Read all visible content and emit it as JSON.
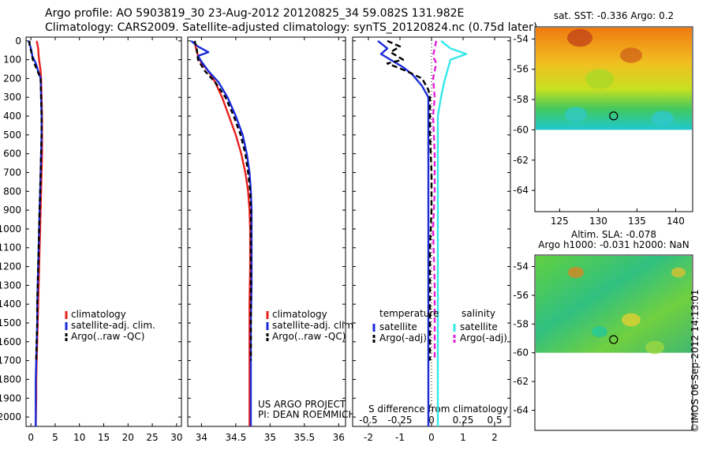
{
  "titles": {
    "line1": "Argo profile: AO 5903819_30 23-Aug-2012 20120825_34 59.082S 131.982E",
    "line2": "Climatology: CARS2009. Satellite-adjusted climatology: synTS_20120824.nc (0.75d later)"
  },
  "colors": {
    "climatology": "#e8201c",
    "satellite": "#1a2bd9",
    "argo": "#000000",
    "salinity_sat": "#33e8e8",
    "salinity_argo": "#e020d8"
  },
  "chart_data": [
    {
      "type": "line",
      "panel": "temperature",
      "y_ticks": [
        "0",
        "100",
        "200",
        "300",
        "400",
        "500",
        "600",
        "700",
        "800",
        "900",
        "1000",
        "1100",
        "1200",
        "1300",
        "1400",
        "1500",
        "1600",
        "1700",
        "1800",
        "1900",
        "2000"
      ],
      "x_ticks": [
        "0",
        "5",
        "10",
        "15",
        "20",
        "25",
        "30"
      ],
      "xlim": [
        -1,
        31
      ],
      "ylim": [
        2050,
        -20
      ],
      "legend": [
        "climatology",
        "satellite-adj. clim.",
        "Argo(..raw -QC)"
      ],
      "series": [
        {
          "name": "climatology",
          "x": [
            1.2,
            1.5,
            1.6,
            1.8,
            2.0,
            2.1,
            2.2,
            2.3,
            2.3,
            2.3,
            2.2,
            2.1,
            2.0,
            1.9,
            1.8,
            1.7,
            1.6,
            1.5,
            1.4,
            1.3,
            1.2,
            1.1,
            1.1,
            1.0
          ],
          "y": [
            0,
            40,
            80,
            120,
            160,
            200,
            300,
            400,
            500,
            600,
            700,
            800,
            900,
            1000,
            1100,
            1200,
            1300,
            1400,
            1500,
            1600,
            1700,
            1800,
            1900,
            2050
          ]
        },
        {
          "name": "satellite-adj. clim.",
          "x": [
            -0.5,
            0.0,
            0.3,
            1.0,
            1.5,
            2.0,
            2.1,
            2.2,
            2.2,
            2.1,
            2.0,
            1.9,
            1.8,
            1.7,
            1.6,
            1.5,
            1.4,
            1.3,
            1.3,
            1.2,
            1.1,
            1.0,
            1.0
          ],
          "y": [
            0,
            40,
            80,
            120,
            160,
            200,
            300,
            400,
            500,
            600,
            700,
            800,
            900,
            1000,
            1100,
            1200,
            1300,
            1400,
            1500,
            1600,
            1700,
            1800,
            2050
          ]
        },
        {
          "name": "Argo(..raw -QC)",
          "x": [
            -0.3,
            -0.2,
            0.1,
            0.4,
            1.2,
            2.0,
            2.1,
            2.2,
            2.2,
            2.1,
            2.0,
            1.9,
            1.8,
            1.7,
            1.6,
            1.5,
            1.4,
            1.3,
            1.3,
            1.2,
            1.1
          ],
          "y": [
            0,
            30,
            60,
            100,
            150,
            200,
            300,
            400,
            500,
            600,
            700,
            800,
            900,
            1000,
            1100,
            1200,
            1300,
            1400,
            1500,
            1600,
            1700
          ]
        }
      ]
    },
    {
      "type": "line",
      "panel": "salinity",
      "x_ticks": [
        "34",
        "34.5",
        "35",
        "35.5",
        "36"
      ],
      "xlim": [
        33.8,
        36.1
      ],
      "ylim": [
        2050,
        -20
      ],
      "legend": [
        "climatology",
        "satellite-adj. clim.",
        "Argo(..raw -QC)"
      ],
      "annotations": [
        "US ARGO PROJECT",
        "PI: DEAN ROEMMICH"
      ],
      "series": [
        {
          "name": "climatology",
          "x": [
            33.9,
            33.92,
            33.95,
            34.0,
            34.1,
            34.2,
            34.3,
            34.4,
            34.5,
            34.58,
            34.64,
            34.68,
            34.7,
            34.71,
            34.71,
            34.71,
            34.7,
            34.7,
            34.7,
            34.7,
            34.7
          ],
          "y": [
            0,
            40,
            80,
            120,
            160,
            220,
            300,
            400,
            500,
            600,
            700,
            800,
            900,
            1000,
            1100,
            1200,
            1400,
            1600,
            1800,
            1900,
            2050
          ]
        },
        {
          "name": "satellite-adj. clim.",
          "x": [
            33.85,
            33.95,
            34.1,
            33.95,
            34.0,
            34.1,
            34.25,
            34.38,
            34.5,
            34.6,
            34.66,
            34.7,
            34.72,
            34.73,
            34.73,
            34.73,
            34.73,
            34.72,
            34.72,
            34.72
          ],
          "y": [
            0,
            30,
            60,
            80,
            110,
            160,
            220,
            300,
            400,
            500,
            600,
            700,
            800,
            900,
            1000,
            1100,
            1300,
            1500,
            1800,
            2050
          ]
        },
        {
          "name": "Argo(..raw -QC)",
          "x": [
            33.9,
            33.93,
            33.95,
            34.05,
            34.2,
            34.35,
            34.47,
            34.57,
            34.64,
            34.68,
            34.71,
            34.72,
            34.72,
            34.72,
            34.72
          ],
          "y": [
            0,
            40,
            100,
            160,
            220,
            300,
            400,
            500,
            600,
            700,
            800,
            900,
            1000,
            1300,
            1700
          ]
        }
      ]
    },
    {
      "type": "line",
      "panel": "difference",
      "x_ticks": [
        "-2",
        "-1",
        "0",
        "1",
        "2"
      ],
      "x_ticks_top": [
        "-0.5",
        "-0.25",
        "0",
        "0.25",
        "0.5"
      ],
      "xlabel": "S difference from climatology",
      "xlim": [
        -2.5,
        2.5
      ],
      "ylim": [
        2050,
        -20
      ],
      "legend_temperature_title": "temperature",
      "legend_salinity_title": "salinity",
      "legend_temperature": [
        "satellite",
        "Argo(-adj)"
      ],
      "legend_salinity": [
        "satellite",
        "Argo(-adj)"
      ],
      "series": [
        {
          "name": "temperature satellite",
          "x": [
            -1.7,
            -1.4,
            -1.6,
            -1.3,
            -0.9,
            -0.6,
            -0.3,
            -0.1,
            -0.1,
            -0.1,
            -0.1,
            -0.1,
            -0.1,
            -0.1,
            -0.1,
            -0.1,
            -0.1
          ],
          "y": [
            0,
            40,
            70,
            100,
            140,
            180,
            240,
            300,
            400,
            600,
            800,
            1000,
            1200,
            1400,
            1600,
            1800,
            2050
          ]
        },
        {
          "name": "temperature Argo(-adj)",
          "x": [
            -1.4,
            -1.0,
            -1.3,
            -0.9,
            -1.4,
            -0.8,
            -0.3,
            -0.1,
            -0.05,
            -0.05,
            0.0,
            0.0,
            -0.05,
            -0.05,
            -0.05
          ],
          "y": [
            0,
            30,
            60,
            100,
            120,
            160,
            200,
            260,
            300,
            500,
            700,
            900,
            1100,
            1400,
            1700
          ]
        },
        {
          "name": "salinity satellite",
          "x": [
            0.3,
            0.6,
            1.1,
            0.6,
            0.5,
            0.4,
            0.3,
            0.2,
            0.2,
            0.2,
            0.2,
            0.2,
            0.2,
            0.2
          ],
          "y": [
            0,
            40,
            70,
            100,
            160,
            220,
            300,
            400,
            600,
            800,
            1000,
            1300,
            1700,
            2050
          ]
        },
        {
          "name": "salinity Argo(-adj)",
          "x": [
            0.15,
            0.1,
            0.05,
            0.15,
            0.1,
            0.05,
            0.1,
            0.05,
            0.1,
            0.1,
            0.05,
            0.1,
            0.1
          ],
          "y": [
            0,
            40,
            80,
            120,
            160,
            200,
            300,
            400,
            600,
            800,
            1000,
            1300,
            1700
          ]
        }
      ]
    },
    {
      "type": "heatmap",
      "panel": "sst_map",
      "title": "sat. SST: -0.336 Argo: 0.2",
      "x_ticks": [
        "125",
        "130",
        "135",
        "140"
      ],
      "y_ticks": [
        "-54",
        "-56",
        "-58",
        "-60",
        "-62",
        "-64"
      ],
      "xlim": [
        121.8,
        142.2
      ],
      "ylim": [
        -65.4,
        -53.2
      ],
      "marker": {
        "lon": 131.98,
        "lat": -59.08
      }
    },
    {
      "type": "heatmap",
      "panel": "sla_map",
      "title": "Altim. SLA: -0.078",
      "subtitle": "Argo h1000: -0.031 h2000: NaN",
      "y_ticks": [
        "-54",
        "-56",
        "-58",
        "-60",
        "-62",
        "-64"
      ],
      "xlim": [
        121.8,
        142.2
      ],
      "ylim": [
        -65.4,
        -53.2
      ],
      "marker": {
        "lon": 131.98,
        "lat": -59.08
      }
    }
  ],
  "credit": "©IMOS 06-Sep-2012 14:13:01"
}
